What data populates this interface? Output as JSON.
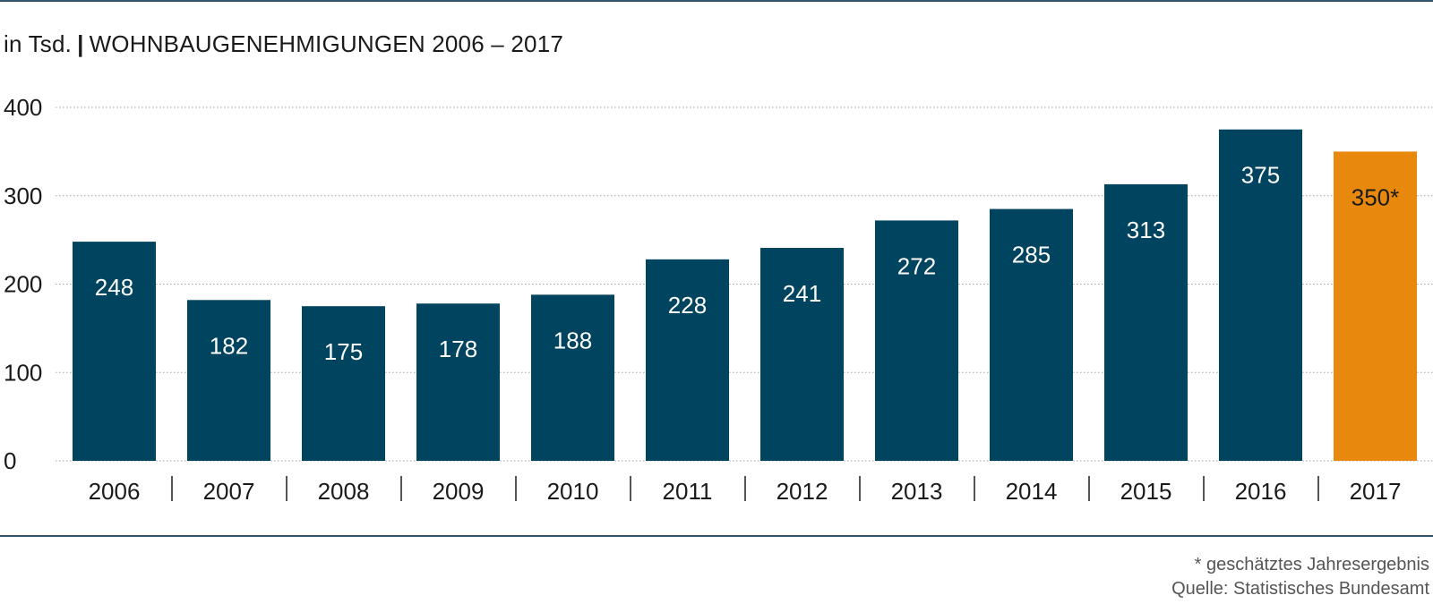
{
  "header": {
    "unit_label": "in Tsd.",
    "separator": "|",
    "title": "WOHNBAUGENEHMIGUNGEN 2006 – 2017"
  },
  "footnotes": {
    "estimate_note": "* geschätztes Jahresergebnis",
    "source": "Quelle: Statistisches Bundesamt"
  },
  "colors": {
    "bar_primary": "#00445f",
    "bar_highlight": "#e8880d",
    "rule": "#33536b",
    "grid": "#9aa7b0",
    "axis_text": "#1a1a1a",
    "label_text": "#ffffff"
  },
  "chart_data": {
    "type": "bar",
    "title": "WOHNBAUGENEHMIGUNGEN 2006 – 2017",
    "xlabel": "",
    "ylabel": "in Tsd.",
    "ylim": [
      0,
      400
    ],
    "yticks": [
      0,
      100,
      200,
      300,
      400
    ],
    "grid": "horizontal dotted",
    "categories": [
      "2006",
      "2007",
      "2008",
      "2009",
      "2010",
      "2011",
      "2012",
      "2013",
      "2014",
      "2015",
      "2016",
      "2017"
    ],
    "values": [
      248,
      182,
      175,
      178,
      188,
      228,
      241,
      272,
      285,
      313,
      375,
      350
    ],
    "data_labels": [
      "248",
      "182",
      "175",
      "178",
      "188",
      "228",
      "241",
      "272",
      "285",
      "313",
      "375",
      "350*"
    ],
    "highlighted_categories": [
      "2017"
    ]
  }
}
